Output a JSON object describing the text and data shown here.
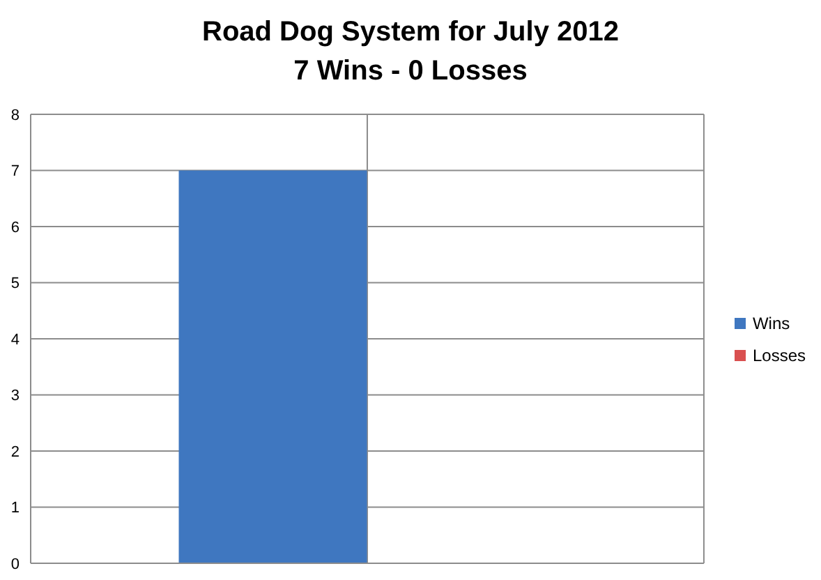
{
  "chart_data": {
    "type": "bar",
    "title": "Road Dog System for July 2012",
    "subtitle": "7 Wins - 0 Losses",
    "categories": [
      null
    ],
    "series": [
      {
        "name": "Wins",
        "color": "#3f77c0",
        "values": [
          7
        ]
      },
      {
        "name": "Losses",
        "color": "#d95050",
        "values": [
          0
        ]
      }
    ],
    "ylim": [
      0,
      8
    ],
    "yticks": [
      0,
      1,
      2,
      3,
      4,
      5,
      6,
      7,
      8
    ],
    "grid": true,
    "legend": "right"
  }
}
